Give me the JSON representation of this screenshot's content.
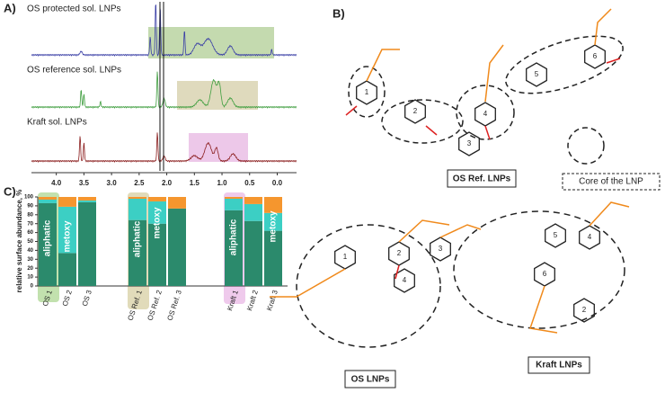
{
  "panel_a": {
    "label": "A)",
    "spectra": [
      "OS protected sol. LNPs",
      "OS reference sol. LNPs",
      "Kraft sol. LNPs"
    ],
    "xlim": [
      4.45,
      -0.35
    ],
    "xticks": [
      {
        "value": 4,
        "label": "4.0"
      },
      {
        "value": 3.5,
        "label": "3.5"
      },
      {
        "value": 3,
        "label": "3.0"
      },
      {
        "value": 2.5,
        "label": "2.5"
      },
      {
        "value": 2,
        "label": "2.0"
      },
      {
        "value": 1.5,
        "label": "1.5"
      },
      {
        "value": 1,
        "label": "1.0"
      },
      {
        "value": 0.5,
        "label": "0.5"
      },
      {
        "value": 0,
        "label": "0.0"
      }
    ]
  },
  "chart_data": {
    "type": "bar",
    "stacked": true,
    "label": "C)",
    "y_label": "relative surface abundance, %",
    "categories": [
      "OS 1",
      "OS 2",
      "OS 3",
      "OS Ref. 1",
      "OS Ref. 2",
      "OS Ref. 3",
      "Kraft 1",
      "Kraft 2",
      "Kraft 3"
    ],
    "series": [
      {
        "name": "aliphatic",
        "color": "#2b8a6c",
        "values": [
          93,
          37,
          94,
          74,
          70,
          87,
          85,
          73,
          62
        ]
      },
      {
        "name": "metoxy",
        "color": "#3ccfc4",
        "values": [
          4,
          52,
          2,
          24,
          25,
          0,
          13,
          19,
          20
        ]
      },
      {
        "color": "#f5962e",
        "values": [
          3,
          11,
          4,
          2,
          5,
          13,
          2,
          8,
          18
        ]
      }
    ],
    "annotations": [
      "aliphatic",
      "metoxy",
      "aliphatic",
      "metoxy",
      "aliphatic",
      "metoxy"
    ],
    "ylim": [
      0,
      100
    ],
    "yticks": [
      0,
      10,
      20,
      30,
      40,
      50,
      60,
      70,
      80,
      90,
      100
    ]
  },
  "panel_b": {
    "label": "B)",
    "os_ref_label": "OS Ref. LNPs",
    "core_label": "Core of the LNP",
    "os_label": "OS LNPs",
    "kraft_label": "Kraft LNPs",
    "os_ref_rings": [
      "1",
      "2",
      "3",
      "4",
      "5",
      "6"
    ],
    "os_rings": [
      "1",
      "2",
      "3",
      "4"
    ],
    "kraft_rings": [
      "2",
      "4",
      "5",
      "6"
    ]
  }
}
